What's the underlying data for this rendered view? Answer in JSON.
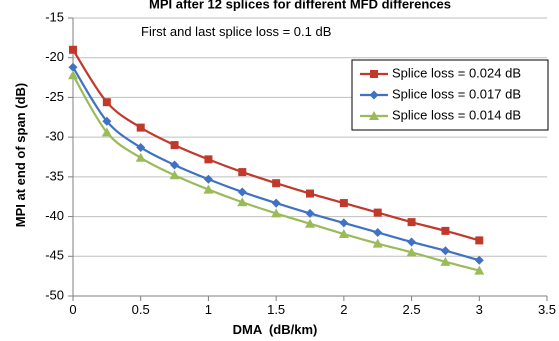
{
  "chart_data": {
    "type": "line",
    "title": "MPI after 12 splices for different MFD differences",
    "xlabel": "DMA  (dB/km)",
    "ylabel": "MPI at end of span (dB)",
    "xlim": [
      0,
      3.5
    ],
    "ylim": [
      -50,
      -15
    ],
    "x_ticks": [
      "0",
      "0.5",
      "1",
      "1.5",
      "2",
      "2.5",
      "3",
      "3.5"
    ],
    "y_ticks": [
      "-15",
      "-20",
      "-25",
      "-30",
      "-35",
      "-40",
      "-45",
      "-50"
    ],
    "grid": "horizontal",
    "legend_position": "right",
    "annotation": "First and last splice loss = 0.1 dB",
    "series": [
      {
        "name": "Splice loss = 0.024 dB",
        "color": "#c0392b",
        "marker": "square",
        "x": [
          0,
          0.25,
          0.5,
          0.75,
          1.0,
          1.25,
          1.5,
          1.75,
          2.0,
          2.25,
          2.5,
          2.75,
          3.0
        ],
        "y": [
          -19.0,
          -25.6,
          -28.8,
          -31.0,
          -32.8,
          -34.4,
          -35.8,
          -37.1,
          -38.3,
          -39.5,
          -40.7,
          -41.8,
          -43.0
        ]
      },
      {
        "name": "Splice loss = 0.017 dB",
        "color": "#3f72c4",
        "marker": "diamond",
        "x": [
          0,
          0.25,
          0.5,
          0.75,
          1.0,
          1.25,
          1.5,
          1.75,
          2.0,
          2.25,
          2.5,
          2.75,
          3.0
        ],
        "y": [
          -21.2,
          -28.0,
          -31.3,
          -33.5,
          -35.3,
          -36.9,
          -38.3,
          -39.6,
          -40.8,
          -42.0,
          -43.2,
          -44.3,
          -45.5
        ]
      },
      {
        "name": "Splice loss = 0.014 dB",
        "color": "#9bbb59",
        "marker": "triangle",
        "x": [
          0,
          0.25,
          0.5,
          0.75,
          1.0,
          1.25,
          1.5,
          1.75,
          2.0,
          2.25,
          2.5,
          2.75,
          3.0
        ],
        "y": [
          -22.2,
          -29.4,
          -32.6,
          -34.8,
          -36.6,
          -38.2,
          -39.6,
          -40.9,
          -42.2,
          -43.4,
          -44.5,
          -45.7,
          -46.8
        ]
      }
    ]
  }
}
